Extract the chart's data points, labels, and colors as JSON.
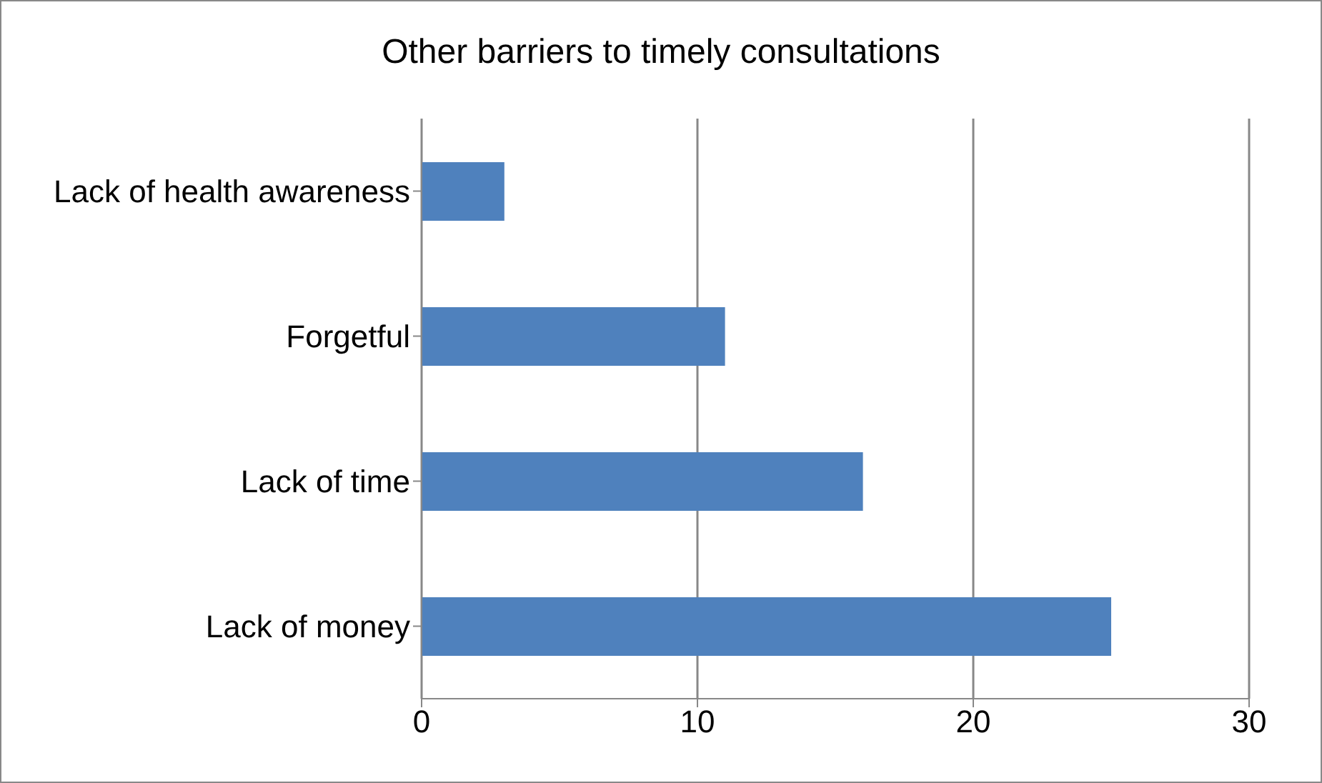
{
  "chart_data": {
    "type": "bar",
    "orientation": "horizontal",
    "title": "Other barriers to timely consultations",
    "categories": [
      "Lack of health awareness",
      "Forgetful",
      "Lack of time",
      "Lack of money"
    ],
    "values": [
      3,
      11,
      16,
      25
    ],
    "color": "#4f81bd",
    "xlim": [
      0,
      30
    ],
    "xticks": [
      0,
      10,
      20,
      30
    ],
    "grid": "x"
  }
}
